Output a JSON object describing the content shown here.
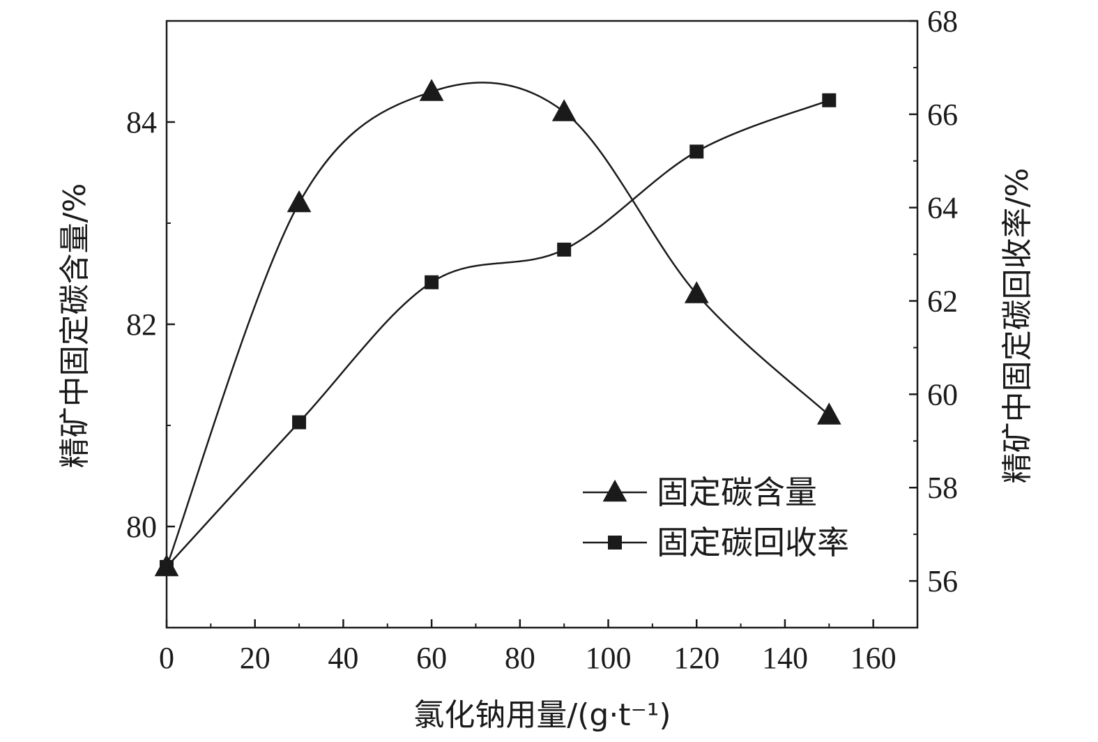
{
  "chart_data": {
    "type": "line",
    "xlabel": "氯化钠用量/(g·t⁻¹)",
    "ylabel_left": "精矿中固定碳含量/%",
    "ylabel_right": "精矿中固定碳回收率/%",
    "xlim": [
      0,
      170
    ],
    "ylim_left": [
      79.0,
      85.0
    ],
    "ylim_right": [
      55.0,
      68.0
    ],
    "x_ticks": [
      0,
      20,
      40,
      60,
      80,
      100,
      120,
      140,
      160
    ],
    "y_ticks_left": [
      80,
      82,
      84
    ],
    "y_ticks_right": [
      56,
      58,
      60,
      62,
      64,
      66,
      68
    ],
    "x": [
      0,
      30,
      60,
      90,
      120,
      150
    ],
    "series": [
      {
        "name": "固定碳含量",
        "axis": "left",
        "marker": "triangle",
        "values": [
          79.6,
          83.2,
          84.3,
          84.1,
          82.3,
          81.1
        ]
      },
      {
        "name": "固定碳回收率",
        "axis": "right",
        "marker": "square",
        "values": [
          56.3,
          59.4,
          62.4,
          63.1,
          65.2,
          66.3
        ]
      }
    ],
    "legend_position": "lower-right",
    "grid": false
  }
}
